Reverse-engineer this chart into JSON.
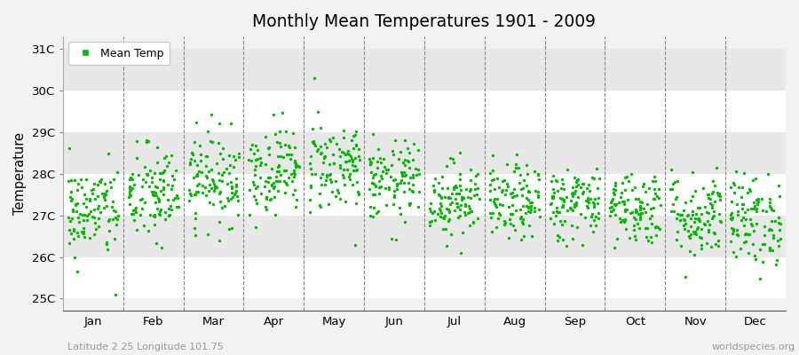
{
  "title": "Monthly Mean Temperatures 1901 - 2009",
  "ylabel": "Temperature",
  "xlabel_labels": [
    "Jan",
    "Feb",
    "Mar",
    "Apr",
    "May",
    "Jun",
    "Jul",
    "Aug",
    "Sep",
    "Oct",
    "Nov",
    "Dec"
  ],
  "ytick_labels": [
    "25C",
    "26C",
    "27C",
    "28C",
    "29C",
    "30C",
    "31C"
  ],
  "ytick_values": [
    25,
    26,
    27,
    28,
    29,
    30,
    31
  ],
  "ylim": [
    24.7,
    31.3
  ],
  "dot_color": "#00bb00",
  "legend_label": "Mean Temp",
  "footer_left": "Latitude 2.25 Longitude 101.75",
  "footer_right": "worldspecies.org",
  "bg_color": "#f2f2f2",
  "plot_bg_color": "#f2f2f2",
  "band_colors": [
    "#ffffff",
    "#e8e8e8"
  ],
  "start_year": 1901,
  "end_year": 2009,
  "monthly_means": [
    27.1,
    27.5,
    27.9,
    28.1,
    28.2,
    27.8,
    27.4,
    27.3,
    27.3,
    27.2,
    27.0,
    26.9
  ],
  "monthly_stds": [
    0.55,
    0.6,
    0.55,
    0.52,
    0.55,
    0.48,
    0.45,
    0.45,
    0.45,
    0.45,
    0.52,
    0.55
  ],
  "seed": 42
}
